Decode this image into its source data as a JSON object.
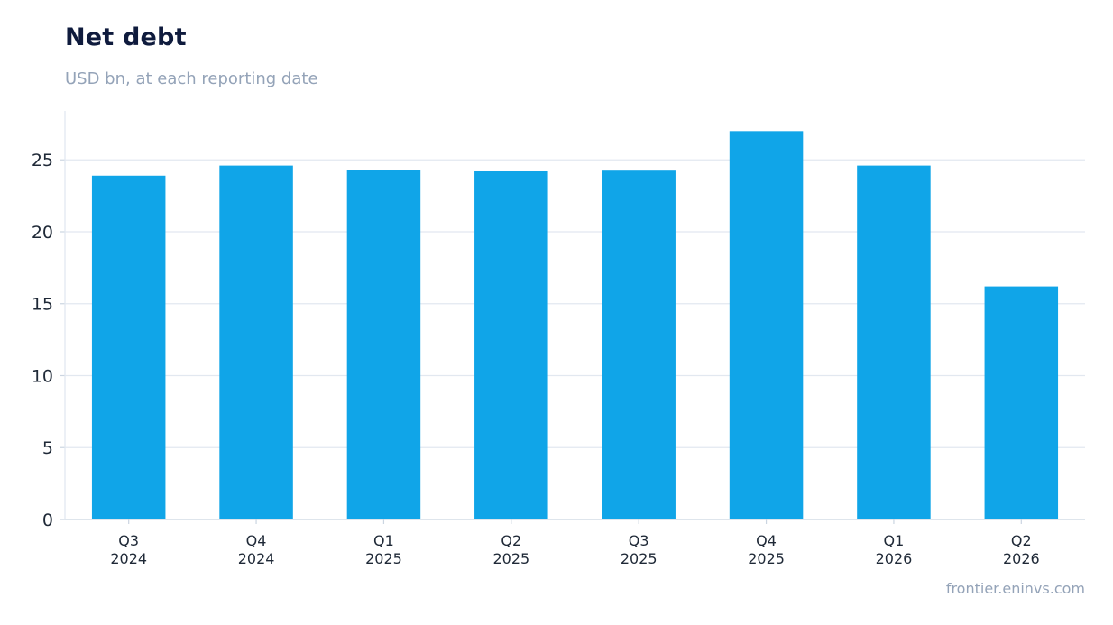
{
  "header": {
    "title": "Net debt",
    "subtitle": "USD bn, at each reporting date"
  },
  "footer": {
    "source": "frontier.eninvs.com"
  },
  "colors": {
    "bar": "#10a5e8",
    "grid": "#e2e8f0",
    "axis": "#cbd5e1",
    "title": "#0f1b3d",
    "muted": "#94a3b8"
  },
  "chart_data": {
    "type": "bar",
    "title": "Net debt",
    "subtitle": "USD bn, at each reporting date",
    "xlabel": "",
    "ylabel": "",
    "categories": [
      [
        "Q3",
        "2024"
      ],
      [
        "Q4",
        "2024"
      ],
      [
        "Q1",
        "2025"
      ],
      [
        "Q2",
        "2025"
      ],
      [
        "Q3",
        "2025"
      ],
      [
        "Q4",
        "2025"
      ],
      [
        "Q1",
        "2026"
      ],
      [
        "Q2",
        "2026"
      ]
    ],
    "values": [
      23.9,
      24.6,
      24.3,
      24.2,
      24.25,
      27.0,
      24.6,
      16.2
    ],
    "yticks": [
      0,
      5,
      10,
      15,
      20,
      25
    ],
    "ylim": [
      0,
      28.4
    ],
    "grid": true,
    "legend": "none"
  }
}
